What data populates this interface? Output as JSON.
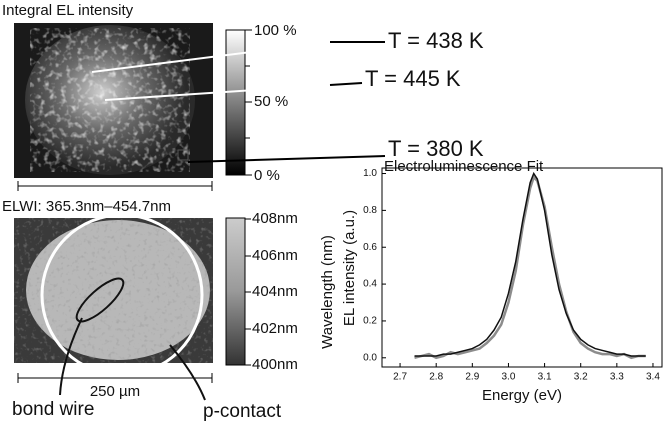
{
  "figure": {
    "top_map_title": "Integral EL intensity",
    "top_colorbar_ticks": [
      "100 %",
      "50 %",
      "0 %"
    ],
    "temperatures": [
      "T = 438 K",
      "T = 445 K",
      "T = 380 K"
    ],
    "bottom_map_title": "ELWI: 365.3nm–454.7nm",
    "bottom_colorbar_ticks": [
      "408nm",
      "406nm",
      "404nm",
      "402nm",
      "400nm"
    ],
    "bottom_colorbar_label": "Wavelength (nm)",
    "scale_bar": "250 µm",
    "labels": [
      "bond wire",
      "p-contact"
    ]
  },
  "chart_data": {
    "type": "line",
    "title": "Electroluminescence Fit",
    "x_label": "Energy (eV)",
    "y_label": "EL intensity (a.u.)",
    "x": [
      2.74,
      2.76,
      2.78,
      2.8,
      2.82,
      2.84,
      2.86,
      2.88,
      2.9,
      2.92,
      2.94,
      2.96,
      2.98,
      3.0,
      3.02,
      3.04,
      3.06,
      3.07,
      3.08,
      3.1,
      3.12,
      3.14,
      3.16,
      3.18,
      3.2,
      3.22,
      3.24,
      3.26,
      3.28,
      3.3,
      3.32,
      3.34,
      3.36,
      3.38
    ],
    "series": [
      {
        "color": "#8c8c8c",
        "values": [
          0.0,
          0.01,
          0.02,
          0.0,
          0.01,
          0.03,
          0.02,
          0.03,
          0.04,
          0.05,
          0.08,
          0.12,
          0.18,
          0.3,
          0.47,
          0.72,
          0.92,
          0.98,
          0.96,
          0.82,
          0.6,
          0.4,
          0.25,
          0.14,
          0.08,
          0.05,
          0.03,
          0.02,
          0.02,
          0.01,
          0.02,
          0.0,
          0.01,
          0.01
        ]
      },
      {
        "color": "#111111",
        "values": [
          0.01,
          0.01,
          0.01,
          0.01,
          0.02,
          0.02,
          0.03,
          0.04,
          0.05,
          0.07,
          0.1,
          0.15,
          0.22,
          0.35,
          0.52,
          0.75,
          0.95,
          1.0,
          0.97,
          0.8,
          0.56,
          0.37,
          0.24,
          0.15,
          0.1,
          0.07,
          0.05,
          0.04,
          0.03,
          0.02,
          0.02,
          0.01,
          0.01,
          0.01
        ]
      }
    ],
    "xlim": [
      2.65,
      3.425
    ],
    "xticks": [
      2.7,
      2.8,
      2.9,
      {
        "value": 3,
        "label": "3.0"
      },
      3.1,
      3.2,
      3.3,
      3.4
    ],
    "ylim": [
      -0.05,
      1.03
    ],
    "yticks": [
      {
        "value": 0,
        "label": "0.0"
      },
      0.2,
      0.4,
      0.6,
      0.8,
      {
        "value": 1,
        "label": "1.0"
      }
    ]
  }
}
